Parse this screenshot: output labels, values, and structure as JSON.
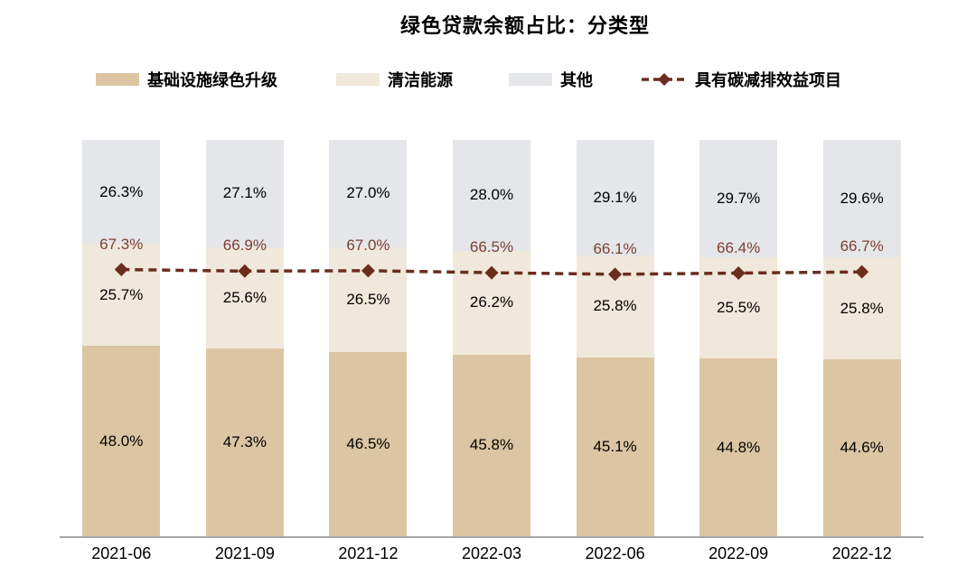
{
  "title": "绿色贷款余额占比：分类型",
  "colors": {
    "infra_bar": "#dcc5a2",
    "clean_bar": "#f0e8da",
    "other_bar": "#e4e6e9",
    "line": "#6b2d1e",
    "line_label": "#7d4032",
    "bar_label": "#000000",
    "axis": "#a6a6a6"
  },
  "legend": {
    "items": [
      {
        "label": "基础设施绿色升级",
        "icon": "bar-swatch",
        "color": "#dcc5a2"
      },
      {
        "label": "清洁能源",
        "icon": "bar-swatch",
        "color": "#f0e8da"
      },
      {
        "label": "其他",
        "icon": "bar-swatch",
        "color": "#e4e6e9"
      },
      {
        "label": "具有碳减排效益项目",
        "icon": "dashed-line-diamond",
        "color": "#6b2d1e"
      }
    ]
  },
  "chart_data": {
    "type": "bar",
    "subtype": "stacked-100-percent-with-line-overlay",
    "title": "绿色贷款余额占比：分类型",
    "categories": [
      "2021-06",
      "2021-09",
      "2021-12",
      "2022-03",
      "2022-06",
      "2022-09",
      "2022-12"
    ],
    "series": [
      {
        "name": "基础设施绿色升级",
        "color": "#dcc5a2",
        "label_color": "#000000",
        "values": [
          48.0,
          47.3,
          46.5,
          45.8,
          45.1,
          44.8,
          44.6
        ]
      },
      {
        "name": "清洁能源",
        "color": "#f0e8da",
        "label_color": "#000000",
        "values": [
          25.7,
          25.6,
          26.5,
          26.2,
          25.8,
          25.5,
          25.8
        ]
      },
      {
        "name": "其他",
        "color": "#e4e6e9",
        "label_color": "#000000",
        "values": [
          26.3,
          27.1,
          27.0,
          28.0,
          29.1,
          29.7,
          29.6
        ]
      }
    ],
    "line_series": {
      "name": "具有碳减排效益项目",
      "color": "#6b2d1e",
      "label_color": "#7d4032",
      "marker": "diamond",
      "line_style": "dashed",
      "values": [
        67.3,
        66.9,
        67.0,
        66.5,
        66.1,
        66.4,
        66.7
      ]
    },
    "ylim": [
      0,
      100
    ],
    "value_suffix": "%",
    "value_decimals": 1,
    "grid": false,
    "legend_position": "top",
    "xlabel": "",
    "ylabel": ""
  }
}
